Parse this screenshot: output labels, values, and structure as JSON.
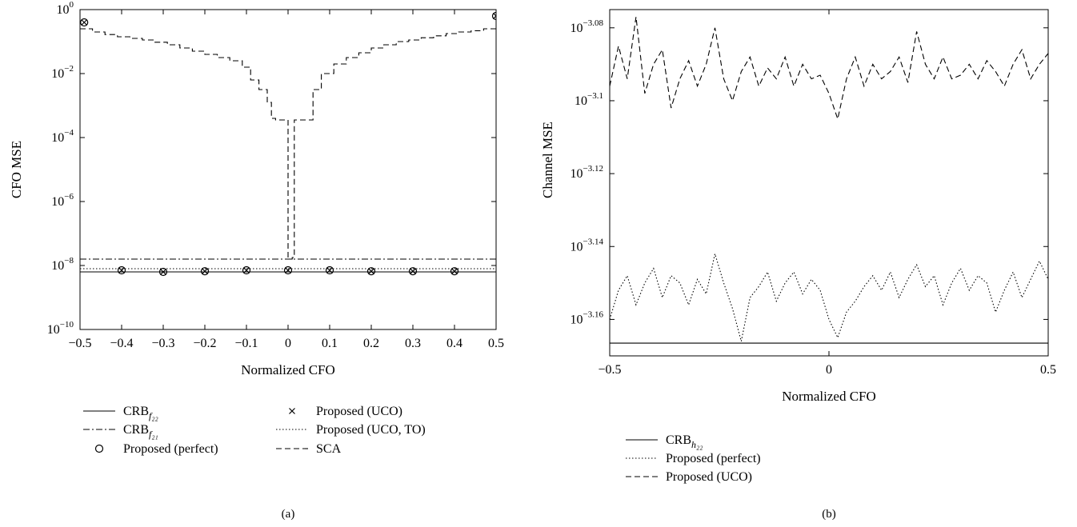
{
  "chart_data": [
    {
      "panel": "(a)",
      "type": "line",
      "xlabel": "Normalized CFO",
      "ylabel": "CFO MSE",
      "scale": "log",
      "xlim": [
        -0.5,
        0.5
      ],
      "ylim_exponents": [
        -10,
        0
      ],
      "xticks": [
        "−0.5",
        "−0.4",
        "−0.3",
        "−0.2",
        "−0.1",
        "0",
        "0.1",
        "0.2",
        "0.3",
        "0.4",
        "0.5"
      ],
      "yticks": [
        {
          "base": "10",
          "exp": "0"
        },
        {
          "base": "10",
          "exp": "−2"
        },
        {
          "base": "10",
          "exp": "−4"
        },
        {
          "base": "10",
          "exp": "−6"
        },
        {
          "base": "10",
          "exp": "−8"
        },
        {
          "base": "10",
          "exp": "−10"
        }
      ],
      "legend_placement": "below",
      "series": [
        {
          "name_main": "CRB",
          "name_sub": "f₂₂",
          "style": "solid",
          "x": [
            -0.5,
            0.5
          ],
          "y_log10": [
            -8.2,
            -8.2
          ]
        },
        {
          "name_main": "CRB",
          "name_sub": "f₂₁",
          "style": "dashdot",
          "x": [
            -0.5,
            0.5
          ],
          "y_log10": [
            -7.8,
            -7.8
          ]
        },
        {
          "name_main": "Proposed (perfect)",
          "name_sub": "",
          "style": "circle",
          "x": [
            -0.49,
            -0.4,
            -0.3,
            -0.2,
            -0.1,
            0,
            0.1,
            0.2,
            0.3,
            0.4,
            0.5
          ],
          "y_log10": [
            -0.4,
            -8.15,
            -8.2,
            -8.18,
            -8.15,
            -8.15,
            -8.15,
            -8.18,
            -8.18,
            -8.18,
            -0.2
          ]
        },
        {
          "name_main": "Proposed (UCO)",
          "name_sub": "",
          "style": "cross",
          "x": [
            -0.49,
            -0.4,
            -0.3,
            -0.2,
            -0.1,
            0,
            0.1,
            0.2,
            0.3,
            0.4,
            0.5
          ],
          "y_log10": [
            -0.4,
            -8.15,
            -8.2,
            -8.18,
            -8.15,
            -8.15,
            -8.15,
            -8.18,
            -8.18,
            -8.18,
            -0.2
          ]
        },
        {
          "name_main": "Proposed (UCO, TO)",
          "name_sub": "",
          "style": "dotted",
          "x": [
            -0.5,
            0.5
          ],
          "y_log10": [
            -8.1,
            -8.1
          ]
        },
        {
          "name_main": "SCA",
          "name_sub": "",
          "style": "dashed",
          "x": [
            -0.5,
            -0.47,
            -0.44,
            -0.41,
            -0.38,
            -0.35,
            -0.32,
            -0.29,
            -0.26,
            -0.23,
            -0.2,
            -0.17,
            -0.14,
            -0.11,
            -0.09,
            -0.07,
            -0.05,
            -0.04,
            -0.03,
            -0.02,
            -0.01,
            0.0,
            0.01,
            0.015,
            0.02,
            0.03,
            0.04,
            0.06,
            0.08,
            0.11,
            0.14,
            0.17,
            0.2,
            0.23,
            0.26,
            0.29,
            0.32,
            0.35,
            0.38,
            0.41,
            0.44,
            0.47,
            0.5
          ],
          "y_log10": [
            -0.6,
            -0.7,
            -0.78,
            -0.85,
            -0.9,
            -0.95,
            -1.02,
            -1.1,
            -1.2,
            -1.3,
            -1.4,
            -1.5,
            -1.6,
            -1.8,
            -2.2,
            -2.5,
            -2.9,
            -3.4,
            -3.45,
            -3.45,
            -3.45,
            -7.8,
            -7.75,
            -3.45,
            -3.45,
            -3.45,
            -3.45,
            -2.5,
            -2.0,
            -1.7,
            -1.5,
            -1.35,
            -1.2,
            -1.1,
            -1.0,
            -0.95,
            -0.88,
            -0.82,
            -0.75,
            -0.7,
            -0.66,
            -0.6,
            -0.55
          ]
        }
      ]
    },
    {
      "panel": "(b)",
      "type": "line",
      "xlabel": "Normalized CFO",
      "ylabel": "Channel MSE",
      "scale": "log",
      "xlim": [
        -0.5,
        0.5
      ],
      "ylim_exponents": [
        -3.17,
        -3.075
      ],
      "xticks": [
        "−0.5",
        "0",
        "0.5"
      ],
      "yticks": [
        {
          "base": "10",
          "exp": "−3.08"
        },
        {
          "base": "10",
          "exp": "−3.1"
        },
        {
          "base": "10",
          "exp": "−3.12"
        },
        {
          "base": "10",
          "exp": "−3.14"
        },
        {
          "base": "10",
          "exp": "−3.16"
        }
      ],
      "legend_placement": "below",
      "series": [
        {
          "name_main": "CRB",
          "name_sub": "h₂₂",
          "style": "solid",
          "x": [
            -0.5,
            0.5
          ],
          "y_log10": [
            -3.1665,
            -3.1665
          ]
        },
        {
          "name_main": "Proposed (perfect)",
          "name_sub": "",
          "style": "dotted",
          "x": [
            -0.5,
            -0.48,
            -0.46,
            -0.44,
            -0.42,
            -0.4,
            -0.38,
            -0.36,
            -0.34,
            -0.32,
            -0.3,
            -0.28,
            -0.26,
            -0.24,
            -0.22,
            -0.2,
            -0.18,
            -0.16,
            -0.14,
            -0.12,
            -0.1,
            -0.08,
            -0.06,
            -0.04,
            -0.02,
            0.0,
            0.02,
            0.04,
            0.06,
            0.08,
            0.1,
            0.12,
            0.14,
            0.16,
            0.18,
            0.2,
            0.22,
            0.24,
            0.26,
            0.28,
            0.3,
            0.32,
            0.34,
            0.36,
            0.38,
            0.4,
            0.42,
            0.44,
            0.46,
            0.48,
            0.5
          ],
          "y_log10": [
            -3.16,
            -3.152,
            -3.148,
            -3.156,
            -3.15,
            -3.146,
            -3.154,
            -3.148,
            -3.15,
            -3.156,
            -3.149,
            -3.153,
            -3.142,
            -3.15,
            -3.157,
            -3.166,
            -3.154,
            -3.151,
            -3.147,
            -3.155,
            -3.15,
            -3.147,
            -3.153,
            -3.149,
            -3.152,
            -3.16,
            -3.165,
            -3.158,
            -3.155,
            -3.151,
            -3.148,
            -3.152,
            -3.147,
            -3.154,
            -3.149,
            -3.145,
            -3.151,
            -3.148,
            -3.156,
            -3.15,
            -3.146,
            -3.152,
            -3.148,
            -3.15,
            -3.158,
            -3.152,
            -3.147,
            -3.154,
            -3.149,
            -3.144,
            -3.149
          ]
        },
        {
          "name_main": "Proposed (UCO)",
          "name_sub": "",
          "style": "dashed",
          "x": [
            -0.5,
            -0.48,
            -0.46,
            -0.44,
            -0.42,
            -0.4,
            -0.38,
            -0.36,
            -0.34,
            -0.32,
            -0.3,
            -0.28,
            -0.26,
            -0.24,
            -0.22,
            -0.2,
            -0.18,
            -0.16,
            -0.14,
            -0.12,
            -0.1,
            -0.08,
            -0.06,
            -0.04,
            -0.02,
            0.0,
            0.02,
            0.04,
            0.06,
            0.08,
            0.1,
            0.12,
            0.14,
            0.16,
            0.18,
            0.2,
            0.22,
            0.24,
            0.26,
            0.28,
            0.3,
            0.32,
            0.34,
            0.36,
            0.38,
            0.4,
            0.42,
            0.44,
            0.46,
            0.48,
            0.5
          ],
          "y_log10": [
            -3.096,
            -3.085,
            -3.094,
            -3.077,
            -3.098,
            -3.09,
            -3.086,
            -3.102,
            -3.094,
            -3.089,
            -3.096,
            -3.09,
            -3.08,
            -3.094,
            -3.1,
            -3.092,
            -3.088,
            -3.096,
            -3.091,
            -3.094,
            -3.088,
            -3.096,
            -3.09,
            -3.094,
            -3.093,
            -3.098,
            -3.105,
            -3.094,
            -3.088,
            -3.096,
            -3.09,
            -3.094,
            -3.092,
            -3.088,
            -3.095,
            -3.081,
            -3.09,
            -3.094,
            -3.088,
            -3.094,
            -3.093,
            -3.09,
            -3.094,
            -3.089,
            -3.092,
            -3.096,
            -3.09,
            -3.086,
            -3.094,
            -3.09,
            -3.087
          ]
        }
      ]
    }
  ],
  "captions": [
    "(a)",
    "(b)"
  ]
}
